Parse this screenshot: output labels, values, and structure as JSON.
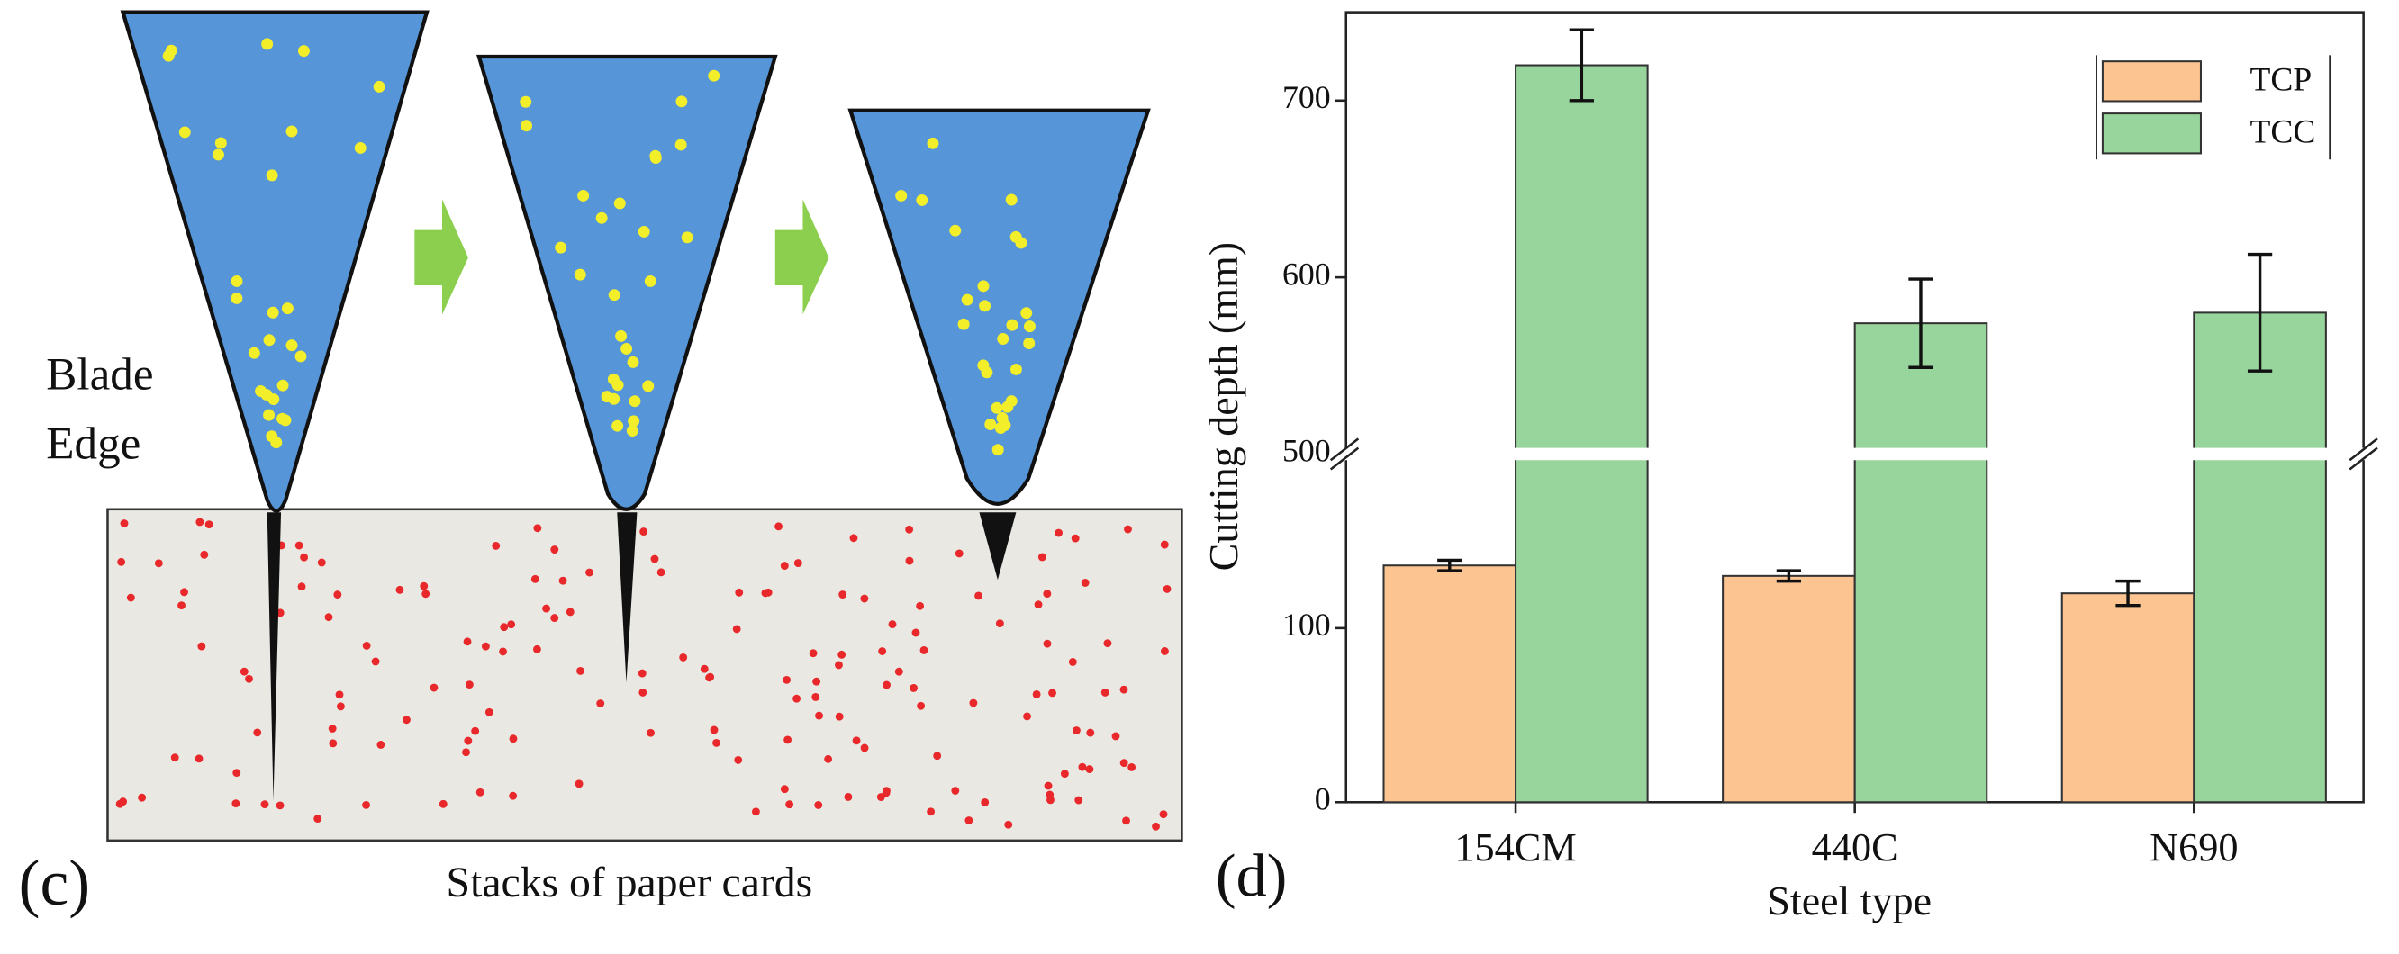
{
  "panel_c": {
    "panel_label": "(c)",
    "blade_label": [
      "Blade",
      "Edge"
    ],
    "caption": "Stacks of paper cards"
  },
  "chart_data": {
    "type": "bar",
    "panel_label": "(d)",
    "x_label": "Steel type",
    "y_label": "Cutting depth (mm)",
    "categories": [
      "154CM",
      "440C",
      "N690"
    ],
    "series": [
      {
        "name": "TCP",
        "color": "#fbc490",
        "values": [
          136,
          130,
          120
        ],
        "errors": [
          3,
          3,
          7
        ]
      },
      {
        "name": "TCC",
        "color": "#98d59c",
        "values": [
          720,
          574,
          580
        ],
        "errors": [
          20,
          25,
          33
        ]
      }
    ],
    "ylim": [
      0,
      750
    ],
    "ybreak": [
      200,
      500
    ],
    "yticks": [
      0,
      100,
      500,
      600,
      700
    ],
    "legend": "upper right"
  }
}
